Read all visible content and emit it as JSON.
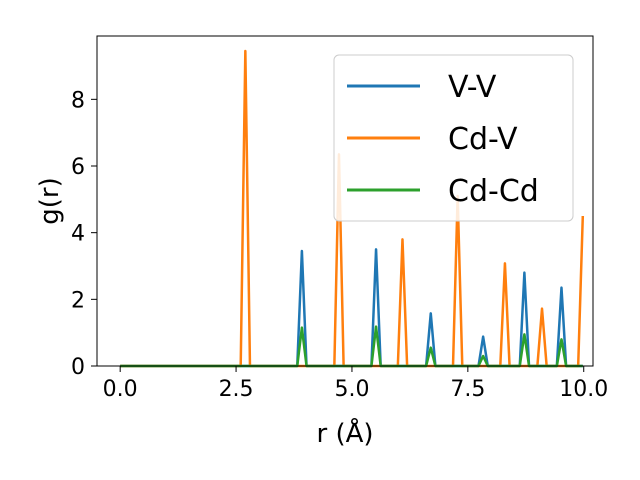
{
  "chart_data": {
    "type": "line",
    "xlabel": "r (Å)",
    "ylabel": "g(r)",
    "xlim": [
      -0.5,
      10.2
    ],
    "ylim": [
      0,
      9.9
    ],
    "xticks": [
      0.0,
      2.5,
      5.0,
      7.5,
      10.0
    ],
    "xtick_labels": [
      "0.0",
      "2.5",
      "5.0",
      "7.5",
      "10.0"
    ],
    "yticks": [
      0,
      2,
      4,
      6,
      8
    ],
    "ytick_labels": [
      "0",
      "2",
      "4",
      "6",
      "8"
    ],
    "grid": false,
    "legend_position": "top-right",
    "series": [
      {
        "name": "V-V",
        "color": "#1f77b4",
        "peaks": [
          {
            "x": 3.92,
            "y": 3.45
          },
          {
            "x": 5.52,
            "y": 3.5
          },
          {
            "x": 6.7,
            "y": 1.58
          },
          {
            "x": 7.83,
            "y": 0.88
          },
          {
            "x": 8.72,
            "y": 2.8
          },
          {
            "x": 9.52,
            "y": 2.35
          }
        ]
      },
      {
        "name": "Cd-V",
        "color": "#ff7f0e",
        "peaks": [
          {
            "x": 2.7,
            "y": 9.45
          },
          {
            "x": 4.72,
            "y": 6.35
          },
          {
            "x": 6.09,
            "y": 3.8
          },
          {
            "x": 7.28,
            "y": 5.1
          },
          {
            "x": 8.3,
            "y": 3.08
          },
          {
            "x": 9.1,
            "y": 1.72
          },
          {
            "x": 9.98,
            "y": 4.5
          }
        ]
      },
      {
        "name": "Cd-Cd",
        "color": "#2ca02c",
        "peaks": [
          {
            "x": 3.92,
            "y": 1.15
          },
          {
            "x": 5.52,
            "y": 1.18
          },
          {
            "x": 6.7,
            "y": 0.55
          },
          {
            "x": 7.83,
            "y": 0.3
          },
          {
            "x": 8.72,
            "y": 0.95
          },
          {
            "x": 9.52,
            "y": 0.8
          }
        ]
      }
    ],
    "x_range_data": [
      0.0,
      9.98
    ]
  }
}
